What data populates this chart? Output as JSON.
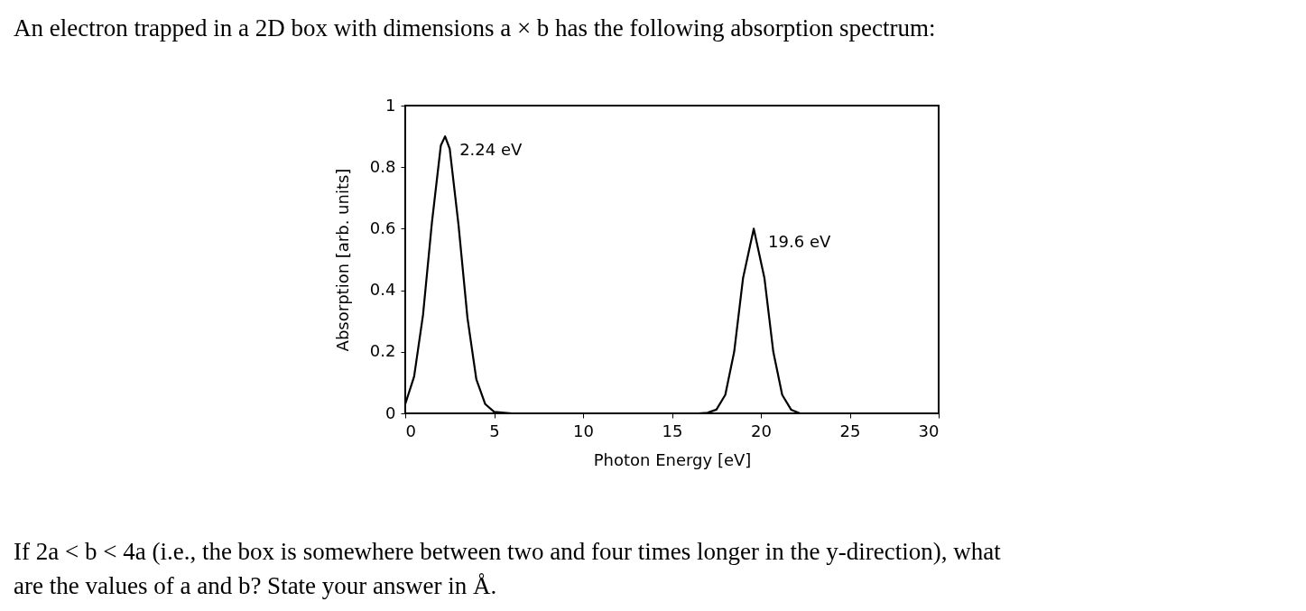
{
  "chart_data": {
    "type": "line",
    "title": "An electron trapped in a 2D box with dimensions a × b has the following absorption spectrum:",
    "xlabel": "Photon Energy [eV]",
    "ylabel": "Absorption [arb. units]",
    "x": [
      0,
      0.5,
      1.0,
      1.5,
      2.0,
      2.24,
      2.5,
      3.0,
      3.5,
      4.0,
      4.5,
      5.0,
      6.0,
      10.0,
      16.5,
      17.0,
      17.5,
      18.0,
      18.5,
      19.0,
      19.6,
      20.2,
      20.7,
      21.2,
      21.7,
      22.2,
      26.0,
      30.0
    ],
    "series": [
      {
        "color": "#000000",
        "values": [
          0.03,
          0.12,
          0.32,
          0.62,
          0.87,
          0.9,
          0.86,
          0.61,
          0.31,
          0.11,
          0.03,
          0.005,
          0,
          0,
          0,
          0.002,
          0.012,
          0.06,
          0.2,
          0.44,
          0.6,
          0.44,
          0.2,
          0.06,
          0.012,
          0,
          0,
          0
        ]
      }
    ],
    "xlim": [
      0,
      30
    ],
    "xticks": [
      0,
      5,
      10,
      15,
      20,
      25,
      30
    ],
    "ylim": [
      0,
      1
    ],
    "yticks": [
      0,
      0.2,
      0.4,
      0.6,
      0.8,
      1
    ],
    "grid": false,
    "marker": "none",
    "line_style": "solid",
    "annotations": [
      {
        "text": "2.24 eV",
        "x": 2.24,
        "y": 0.9
      },
      {
        "text": "19.6 eV",
        "x": 19.6,
        "y": 0.6
      },
      "If 2a < b < 4a (i.e., the box is somewhere between two and four times longer in the y-direction), what",
      "are the values of a and b? State your answer in Å."
    ]
  }
}
